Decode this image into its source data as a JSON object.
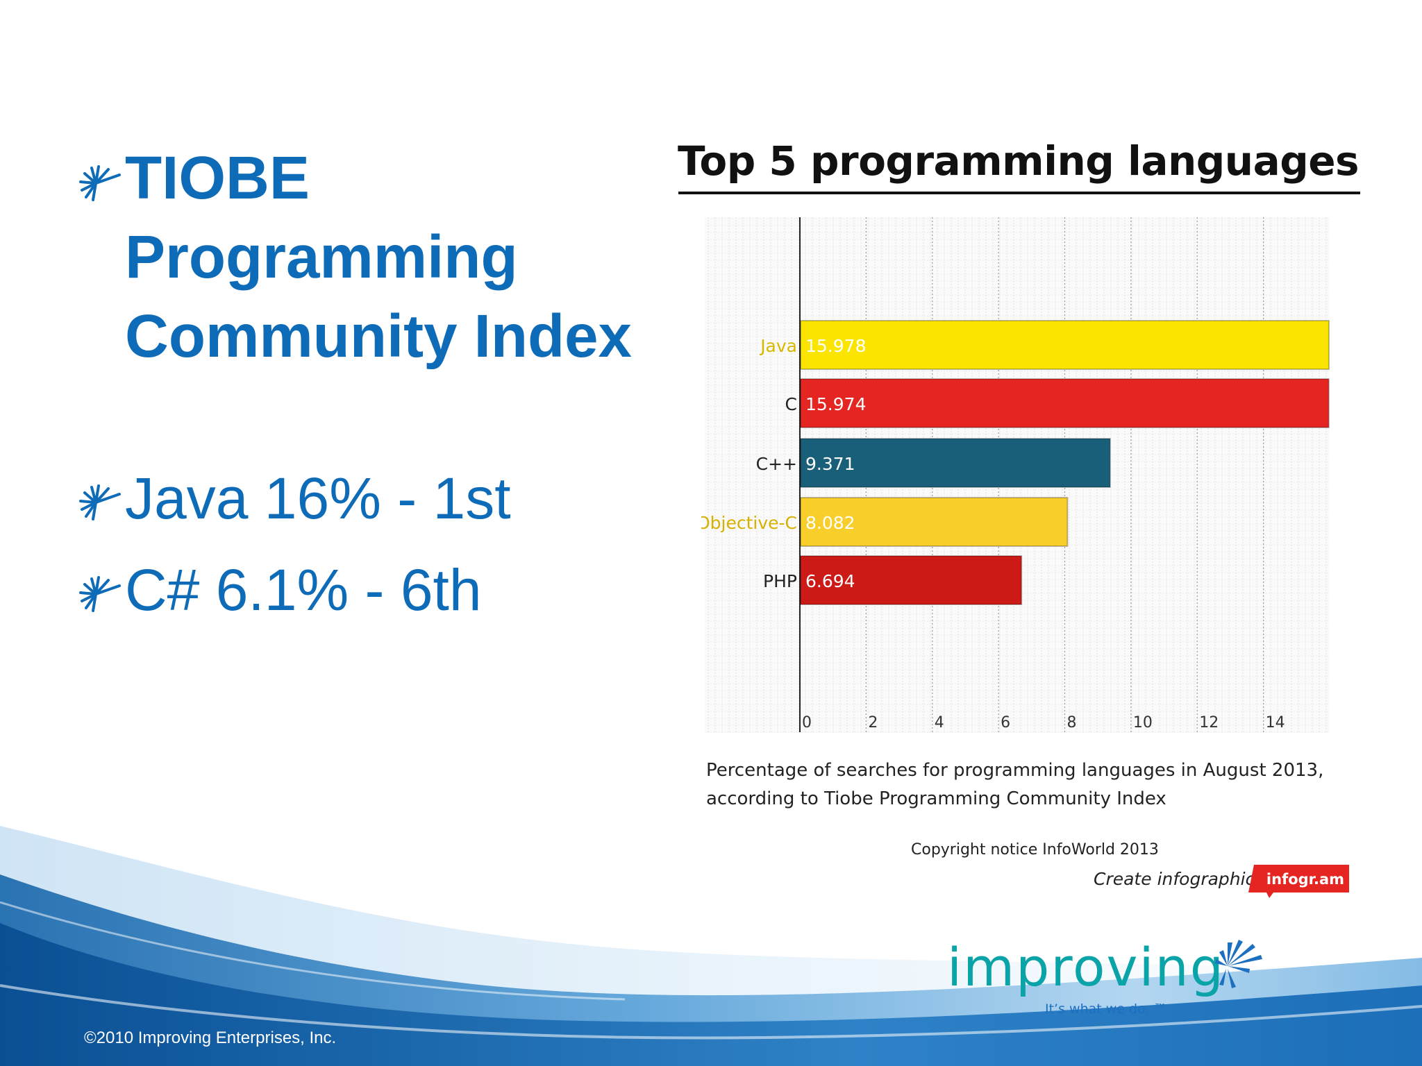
{
  "bullets": [
    {
      "lines": [
        "TIOBE",
        "Programming",
        "Community Index"
      ]
    },
    {
      "text": "Java 16% - 1st"
    },
    {
      "text": "C# 6.1% - 6th"
    }
  ],
  "chart_data": {
    "type": "bar",
    "orientation": "horizontal",
    "title": "Top 5 programming languages",
    "categories": [
      "Java",
      "C",
      "C++",
      "Objective-C",
      "PHP"
    ],
    "values": [
      15.978,
      15.974,
      9.371,
      8.082,
      6.694
    ],
    "value_labels": [
      "15.978",
      "15.974",
      "9.371",
      "8.082",
      "6.694"
    ],
    "colors": [
      "#fbe400",
      "#e52521",
      "#1a5f7a",
      "#f8cf2a",
      "#cc1a17"
    ],
    "category_label_colors": [
      "#d8b800",
      "#222222",
      "#222222",
      "#d8b000",
      "#222222"
    ],
    "xlim": [
      0,
      16
    ],
    "xticks": [
      0,
      2,
      4,
      6,
      8,
      10,
      12,
      14
    ],
    "grid": true,
    "caption": [
      "Percentage of searches for programming languages in August 2013,",
      "according to Tiobe Programming Community Index"
    ],
    "copyright": "Copyright notice InfoWorld 2013",
    "credit": "Create infographics",
    "credit_badge": "infogr.am"
  },
  "logo": {
    "wordmark": "improving",
    "tagline": "It’s what we do. ™"
  },
  "footer": {
    "text": "©2010 Improving Enterprises, Inc."
  },
  "colors": {
    "accent": "#0e6bb8",
    "logo_teal": "#0aa3a8",
    "logo_blue": "#1d6fc0"
  }
}
